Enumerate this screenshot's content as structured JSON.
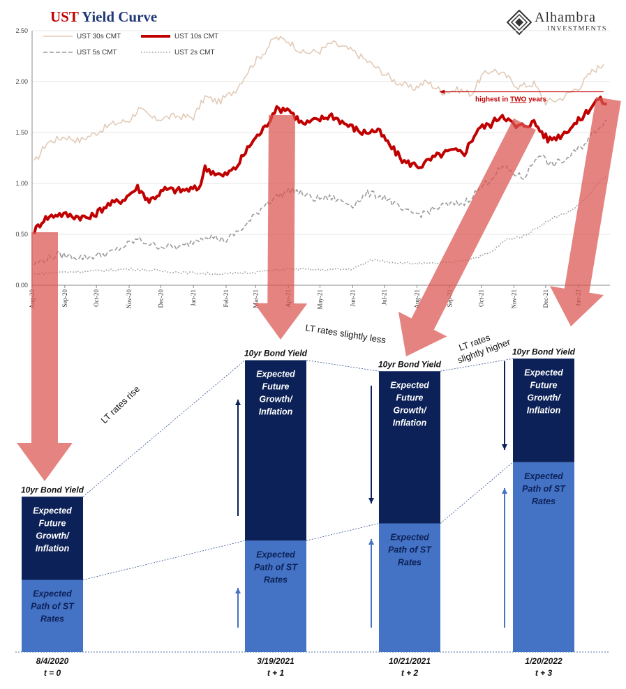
{
  "header": {
    "title_ust": "UST",
    "title_rest": " Yield Curve",
    "logo_name": "Alhambra",
    "logo_sub": "INVESTMENTS"
  },
  "chart_data": [
    {
      "type": "line",
      "title": "UST Yield Curve",
      "ylim": [
        0,
        2.5
      ],
      "yticks": [
        "0.00",
        "0.50",
        "1.00",
        "1.50",
        "2.00",
        "2.50"
      ],
      "xlim": [
        "2020-08-01",
        "2022-01-31"
      ],
      "xticks": [
        {
          "date": "2020-08-01",
          "label": "Aug-20"
        },
        {
          "date": "2020-09-01",
          "label": "Sep-20"
        },
        {
          "date": "2020-10-01",
          "label": "Oct-20"
        },
        {
          "date": "2020-11-01",
          "label": "Nov-20"
        },
        {
          "date": "2020-12-01",
          "label": "Dec-20"
        },
        {
          "date": "2021-01-01",
          "label": "Jan-21"
        },
        {
          "date": "2021-02-01",
          "label": "Feb-21"
        },
        {
          "date": "2021-03-01",
          "label": "Mar-21"
        },
        {
          "date": "2021-04-01",
          "label": "Apr-21"
        },
        {
          "date": "2021-05-01",
          "label": "May-21"
        },
        {
          "date": "2021-06-01",
          "label": "Jun-21"
        },
        {
          "date": "2021-07-01",
          "label": "Jul-21"
        },
        {
          "date": "2021-08-01",
          "label": "Aug-21"
        },
        {
          "date": "2021-09-01",
          "label": "Sep-21"
        },
        {
          "date": "2021-10-01",
          "label": "Oct-21"
        },
        {
          "date": "2021-11-01",
          "label": "Nov-21"
        },
        {
          "date": "2021-12-01",
          "label": "Dec-21"
        },
        {
          "date": "2022-01-01",
          "label": "Jan-22"
        }
      ],
      "legend": {
        "placement": "top-left"
      },
      "grid": "horizontal",
      "series": [
        {
          "name": "UST 30s CMT",
          "color": "#e2cbb8",
          "style": "solid",
          "points": [
            [
              "2020-08-03",
              1.2
            ],
            [
              "2020-08-15",
              1.4
            ],
            [
              "2020-09-01",
              1.46
            ],
            [
              "2020-09-15",
              1.42
            ],
            [
              "2020-10-01",
              1.5
            ],
            [
              "2020-10-15",
              1.58
            ],
            [
              "2020-11-01",
              1.62
            ],
            [
              "2020-11-10",
              1.73
            ],
            [
              "2020-11-25",
              1.63
            ],
            [
              "2020-12-15",
              1.66
            ],
            [
              "2021-01-01",
              1.65
            ],
            [
              "2021-01-12",
              1.85
            ],
            [
              "2021-01-25",
              1.8
            ],
            [
              "2021-02-10",
              1.92
            ],
            [
              "2021-02-26",
              2.17
            ],
            [
              "2021-03-10",
              2.3
            ],
            [
              "2021-03-19",
              2.43
            ],
            [
              "2021-04-01",
              2.4
            ],
            [
              "2021-04-15",
              2.28
            ],
            [
              "2021-05-01",
              2.3
            ],
            [
              "2021-05-12",
              2.38
            ],
            [
              "2021-06-01",
              2.3
            ],
            [
              "2021-06-15",
              2.2
            ],
            [
              "2021-07-01",
              2.08
            ],
            [
              "2021-07-12",
              2.0
            ],
            [
              "2021-07-28",
              1.93
            ],
            [
              "2021-08-10",
              2.0
            ],
            [
              "2021-08-25",
              1.9
            ],
            [
              "2021-09-10",
              1.92
            ],
            [
              "2021-09-22",
              1.88
            ],
            [
              "2021-10-01",
              2.05
            ],
            [
              "2021-10-12",
              2.12
            ],
            [
              "2021-10-25",
              2.05
            ],
            [
              "2021-11-05",
              1.95
            ],
            [
              "2021-11-20",
              1.98
            ],
            [
              "2021-12-01",
              1.8
            ],
            [
              "2021-12-15",
              1.83
            ],
            [
              "2022-01-03",
              1.96
            ],
            [
              "2022-01-14",
              2.1
            ],
            [
              "2022-01-25",
              2.17
            ]
          ]
        },
        {
          "name": "UST 10s CMT",
          "color": "#c00000",
          "style": "solid",
          "points": [
            [
              "2020-08-03",
              0.53
            ],
            [
              "2020-08-12",
              0.65
            ],
            [
              "2020-08-25",
              0.7
            ],
            [
              "2020-09-10",
              0.68
            ],
            [
              "2020-09-25",
              0.66
            ],
            [
              "2020-10-10",
              0.78
            ],
            [
              "2020-10-26",
              0.84
            ],
            [
              "2020-11-09",
              0.96
            ],
            [
              "2020-11-20",
              0.83
            ],
            [
              "2020-12-05",
              0.94
            ],
            [
              "2020-12-20",
              0.93
            ],
            [
              "2021-01-06",
              0.95
            ],
            [
              "2021-01-12",
              1.15
            ],
            [
              "2021-01-29",
              1.07
            ],
            [
              "2021-02-10",
              1.15
            ],
            [
              "2021-02-25",
              1.4
            ],
            [
              "2021-03-10",
              1.55
            ],
            [
              "2021-03-19",
              1.72
            ],
            [
              "2021-03-31",
              1.74
            ],
            [
              "2021-04-15",
              1.58
            ],
            [
              "2021-05-01",
              1.63
            ],
            [
              "2021-05-12",
              1.67
            ],
            [
              "2021-05-26",
              1.58
            ],
            [
              "2021-06-10",
              1.5
            ],
            [
              "2021-06-25",
              1.52
            ],
            [
              "2021-07-08",
              1.35
            ],
            [
              "2021-07-20",
              1.21
            ],
            [
              "2021-08-04",
              1.17
            ],
            [
              "2021-08-20",
              1.27
            ],
            [
              "2021-09-03",
              1.32
            ],
            [
              "2021-09-15",
              1.3
            ],
            [
              "2021-09-28",
              1.54
            ],
            [
              "2021-10-10",
              1.58
            ],
            [
              "2021-10-21",
              1.68
            ],
            [
              "2021-11-03",
              1.55
            ],
            [
              "2021-11-20",
              1.6
            ],
            [
              "2021-12-03",
              1.43
            ],
            [
              "2021-12-15",
              1.47
            ],
            [
              "2022-01-03",
              1.63
            ],
            [
              "2022-01-12",
              1.74
            ],
            [
              "2022-01-20",
              1.83
            ],
            [
              "2022-01-28",
              1.78
            ]
          ]
        },
        {
          "name": "UST 5s CMT",
          "color": "#9a9a9a",
          "style": "dashed",
          "points": [
            [
              "2020-08-03",
              0.21
            ],
            [
              "2020-08-25",
              0.3
            ],
            [
              "2020-09-20",
              0.27
            ],
            [
              "2020-10-15",
              0.32
            ],
            [
              "2020-11-09",
              0.45
            ],
            [
              "2020-11-25",
              0.39
            ],
            [
              "2020-12-20",
              0.37
            ],
            [
              "2021-01-12",
              0.49
            ],
            [
              "2021-02-01",
              0.44
            ],
            [
              "2021-02-20",
              0.59
            ],
            [
              "2021-03-10",
              0.8
            ],
            [
              "2021-03-19",
              0.86
            ],
            [
              "2021-04-05",
              0.94
            ],
            [
              "2021-04-25",
              0.85
            ],
            [
              "2021-05-12",
              0.86
            ],
            [
              "2021-06-01",
              0.79
            ],
            [
              "2021-06-15",
              0.9
            ],
            [
              "2021-07-01",
              0.87
            ],
            [
              "2021-07-20",
              0.72
            ],
            [
              "2021-08-05",
              0.7
            ],
            [
              "2021-08-25",
              0.78
            ],
            [
              "2021-09-15",
              0.81
            ],
            [
              "2021-10-01",
              0.96
            ],
            [
              "2021-10-21",
              1.16
            ],
            [
              "2021-11-10",
              1.05
            ],
            [
              "2021-11-25",
              1.3
            ],
            [
              "2021-12-05",
              1.18
            ],
            [
              "2021-12-20",
              1.23
            ],
            [
              "2022-01-05",
              1.37
            ],
            [
              "2022-01-20",
              1.55
            ],
            [
              "2022-01-28",
              1.62
            ]
          ]
        },
        {
          "name": "UST 2s CMT",
          "color": "#9a9a9a",
          "style": "dotted",
          "points": [
            [
              "2020-08-03",
              0.11
            ],
            [
              "2020-09-01",
              0.13
            ],
            [
              "2020-10-01",
              0.14
            ],
            [
              "2020-11-01",
              0.16
            ],
            [
              "2020-12-01",
              0.14
            ],
            [
              "2021-01-01",
              0.12
            ],
            [
              "2021-02-01",
              0.11
            ],
            [
              "2021-03-01",
              0.13
            ],
            [
              "2021-04-01",
              0.16
            ],
            [
              "2021-05-01",
              0.15
            ],
            [
              "2021-06-01",
              0.16
            ],
            [
              "2021-06-20",
              0.25
            ],
            [
              "2021-07-15",
              0.22
            ],
            [
              "2021-08-10",
              0.21
            ],
            [
              "2021-09-01",
              0.22
            ],
            [
              "2021-09-25",
              0.27
            ],
            [
              "2021-10-10",
              0.32
            ],
            [
              "2021-10-25",
              0.45
            ],
            [
              "2021-11-10",
              0.48
            ],
            [
              "2021-11-25",
              0.58
            ],
            [
              "2021-12-10",
              0.67
            ],
            [
              "2021-12-25",
              0.73
            ],
            [
              "2022-01-10",
              0.87
            ],
            [
              "2022-01-20",
              1.0
            ],
            [
              "2022-01-28",
              1.08
            ]
          ]
        }
      ],
      "annotations": [
        {
          "text_pre": "highest in ",
          "text_em": "TWO",
          "text_post": " years",
          "color": "#c00000",
          "value": 1.9,
          "from_date": "2022-01-25",
          "to_date": "2021-08-22"
        }
      ]
    },
    {
      "type": "bar",
      "stacked": true,
      "ylim": [
        0,
        1.9
      ],
      "dates": [
        "8/4/2020",
        "3/19/2021",
        "10/21/2021",
        "1/20/2022"
      ],
      "time_labels": [
        "t = 0",
        "t + 1",
        "t + 2",
        "t + 3"
      ],
      "top_label": "10yr Bond Yield",
      "series": [
        {
          "name": "Expected Path of ST Rates",
          "color": "#4472c4",
          "values": [
            0.46,
            0.71,
            0.82,
            1.21
          ]
        },
        {
          "name": "Expected Future Growth/ Inflation",
          "color": "#0c2157",
          "values": [
            0.53,
            1.15,
            0.97,
            0.66
          ]
        }
      ],
      "annotations": [
        "LT rates rise",
        "LT rates slightly less",
        "LT rates slightly higher"
      ]
    }
  ],
  "series_labels": {
    "top_segment": [
      "Expected",
      "Future",
      "Growth/",
      "Inflation"
    ],
    "bottom_segment": [
      "Expected",
      "Path of ST",
      "Rates"
    ]
  }
}
